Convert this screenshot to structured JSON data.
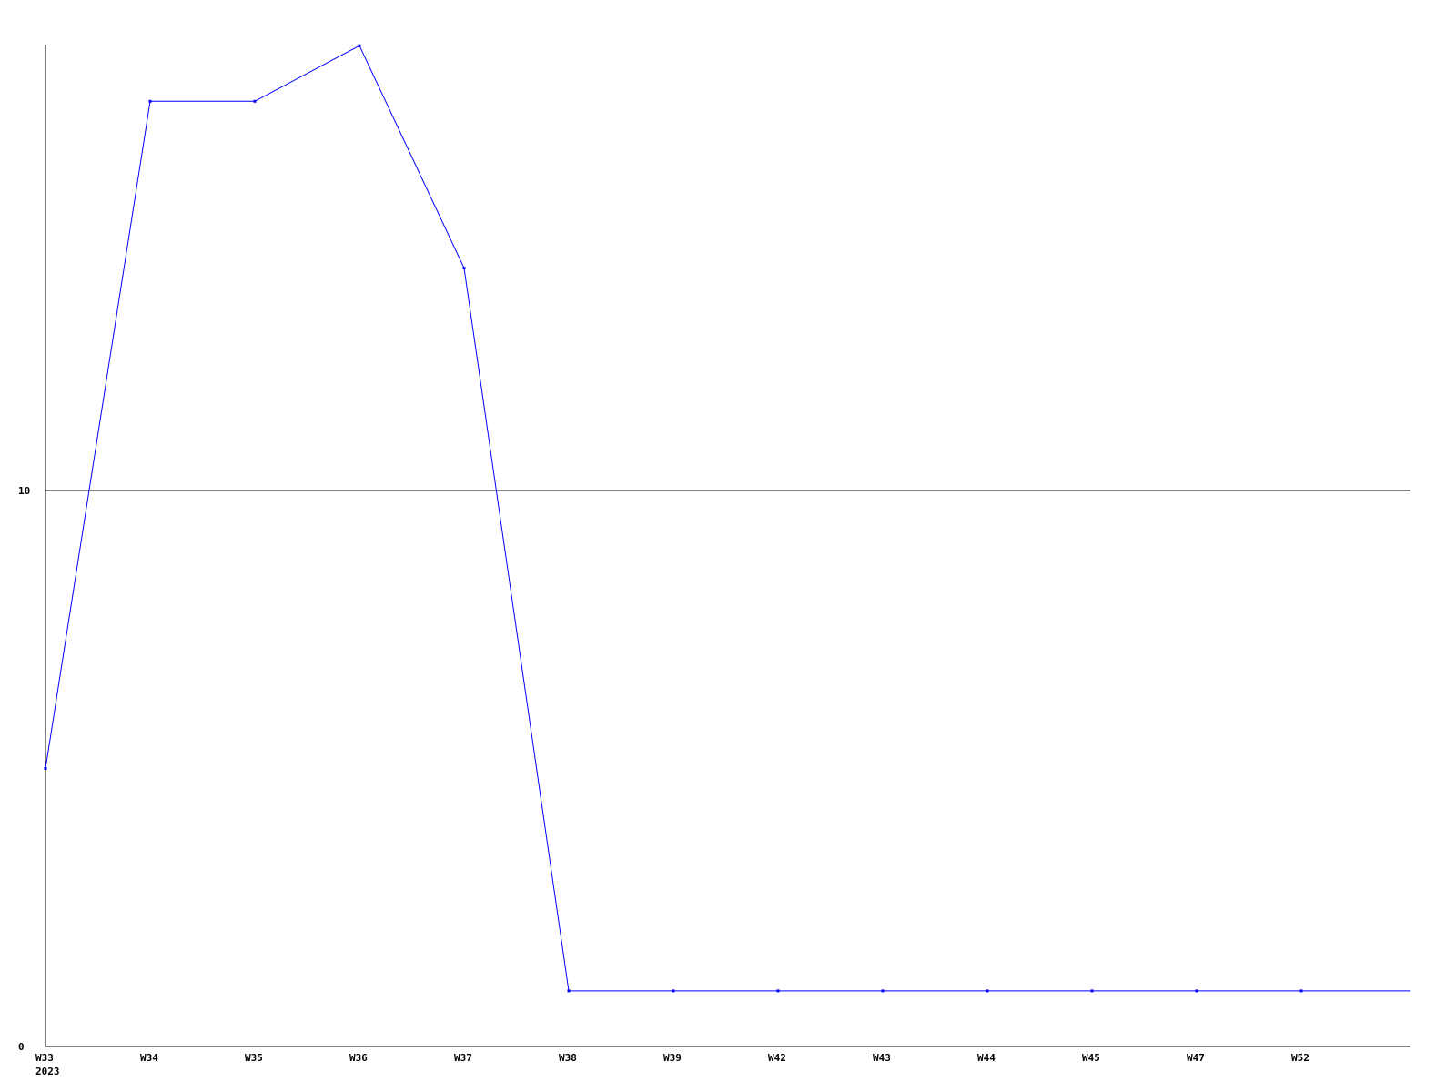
{
  "chart_data": {
    "type": "line",
    "categories": [
      "W33",
      "W34",
      "W35",
      "W36",
      "W37",
      "W38",
      "W39",
      "W42",
      "W43",
      "W44",
      "W45",
      "W47",
      "W52"
    ],
    "x_sublabel": "2023",
    "values": [
      5,
      17,
      17,
      18,
      14,
      1,
      1,
      1,
      1,
      1,
      1,
      1,
      1
    ],
    "y_ticks": [
      "0",
      "10"
    ],
    "ylim": [
      0,
      18
    ],
    "grid": "horizontal line at 10",
    "legend": "none",
    "title": "",
    "xlabel": "",
    "ylabel": "",
    "colors": {
      "series": "#0000ff",
      "axis": "#000000"
    }
  }
}
